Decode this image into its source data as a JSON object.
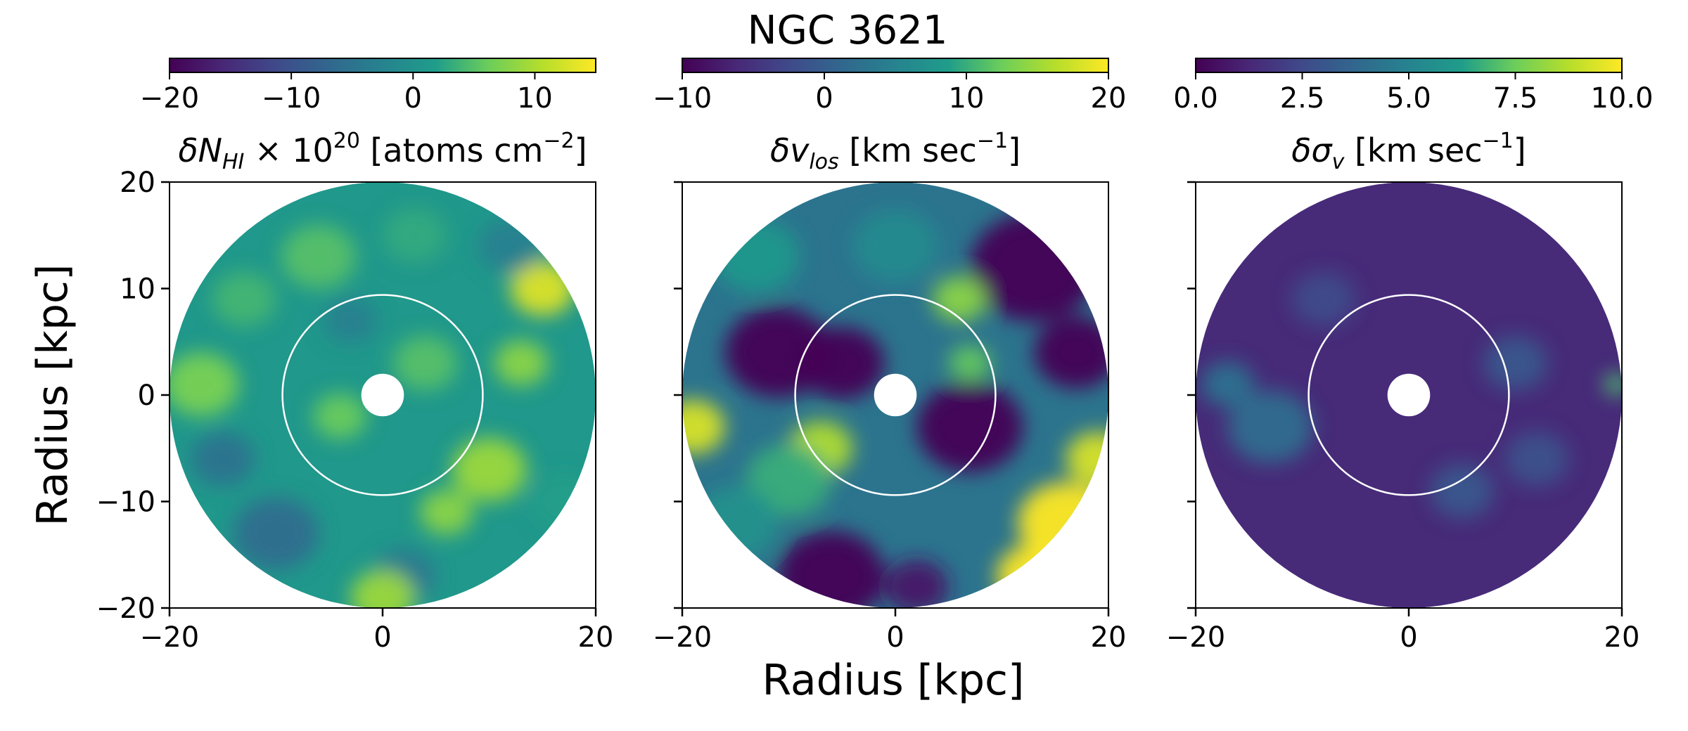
{
  "figure": {
    "title": "NGC 3621",
    "xlabel": "Radius [kpc]",
    "ylabel": "Radius [kpc]"
  },
  "colors": {
    "viridis": [
      "#440154",
      "#482777",
      "#3f4a8a",
      "#31678e",
      "#26838f",
      "#1f9d8a",
      "#6cce5a",
      "#b6de2b",
      "#fee825"
    ],
    "ring": "#ffffff",
    "axis": "#000000"
  },
  "chart_data": [
    {
      "type": "heatmap",
      "panel": "delta column density",
      "title_parts": {
        "pre": "δN",
        "sub1": "HI",
        "mid": " × 10",
        "sup1": "20",
        "post": " [atoms cm",
        "sup2": "−2",
        "end": "]"
      },
      "colorbar": {
        "range": [
          -20,
          15
        ],
        "ticks": [
          -20,
          -10,
          0,
          10
        ],
        "tick_labels": [
          "−20",
          "−10",
          "0",
          "10"
        ]
      },
      "xlim": [
        -20,
        20
      ],
      "ylim": [
        -20,
        20
      ],
      "x_ticks": [
        -20,
        0,
        20
      ],
      "x_tick_labels": [
        "−20",
        "0",
        "20"
      ],
      "y_ticks": [
        -20,
        -10,
        0,
        10,
        20
      ],
      "y_tick_labels": [
        "−20",
        "−10",
        "0",
        "10",
        "20"
      ],
      "disk_radius_kpc": 20,
      "hole_radius_kpc": 2,
      "ring_radius_kpc": 9.4,
      "blobs": [
        {
          "x": 15,
          "y": 10,
          "r": 3,
          "v": 13
        },
        {
          "x": 13,
          "y": 3,
          "r": 2.5,
          "v": 8
        },
        {
          "x": 10,
          "y": -7,
          "r": 3.5,
          "v": 9
        },
        {
          "x": 6,
          "y": -11,
          "r": 2.5,
          "v": 8
        },
        {
          "x": -17,
          "y": 1,
          "r": 3.5,
          "v": 7
        },
        {
          "x": -4,
          "y": -2,
          "r": 2.5,
          "v": 6
        },
        {
          "x": 4,
          "y": 3,
          "r": 3,
          "v": 5
        },
        {
          "x": -13,
          "y": 9,
          "r": 3,
          "v": 4
        },
        {
          "x": -6,
          "y": 13,
          "r": 3.5,
          "v": 5
        },
        {
          "x": 3,
          "y": 15,
          "r": 3,
          "v": 3
        },
        {
          "x": -10,
          "y": -13,
          "r": 4,
          "v": -6
        },
        {
          "x": -15,
          "y": -6,
          "r": 3,
          "v": -5
        },
        {
          "x": 2,
          "y": -17,
          "r": 3,
          "v": -4
        },
        {
          "x": -3,
          "y": 7,
          "r": 2.5,
          "v": -3
        },
        {
          "x": 12,
          "y": 14,
          "r": 3,
          "v": -3
        },
        {
          "x": 0,
          "y": -19,
          "r": 3,
          "v": 9
        },
        {
          "x": 17,
          "y": -10,
          "r": 3,
          "v": 2
        }
      ],
      "background": 1
    },
    {
      "type": "heatmap",
      "panel": "delta line-of-sight velocity",
      "title_parts": {
        "pre": "δv",
        "sub1": "los",
        "mid": " [km sec",
        "sup1": "−1",
        "post": "]"
      },
      "colorbar": {
        "range": [
          -10,
          20
        ],
        "ticks": [
          -10,
          0,
          10,
          20
        ],
        "tick_labels": [
          "−10",
          "0",
          "10",
          "20"
        ]
      },
      "xlim": [
        -20,
        20
      ],
      "ylim": [
        -20,
        20
      ],
      "x_ticks": [
        -20,
        0,
        20
      ],
      "x_tick_labels": [
        "−20",
        "0",
        "20"
      ],
      "y_ticks": [
        -20,
        -10,
        0,
        10,
        20
      ],
      "disk_radius_kpc": 20,
      "hole_radius_kpc": 2,
      "ring_radius_kpc": 9.4,
      "blobs": [
        {
          "x": -11,
          "y": 4,
          "r": 5,
          "v": -10
        },
        {
          "x": -5,
          "y": 3,
          "r": 4,
          "v": -10
        },
        {
          "x": 13,
          "y": 12,
          "r": 6,
          "v": -10
        },
        {
          "x": 17,
          "y": 4,
          "r": 4,
          "v": -10
        },
        {
          "x": 7,
          "y": -3,
          "r": 5,
          "v": -10
        },
        {
          "x": -6,
          "y": -17,
          "r": 5,
          "v": -10
        },
        {
          "x": 2,
          "y": -18,
          "r": 3,
          "v": -8
        },
        {
          "x": 16,
          "y": -12,
          "r": 4.5,
          "v": 20
        },
        {
          "x": 13,
          "y": -17,
          "r": 3.5,
          "v": 20
        },
        {
          "x": 19,
          "y": -6,
          "r": 3,
          "v": 18
        },
        {
          "x": -19,
          "y": -3,
          "r": 3,
          "v": 18
        },
        {
          "x": -7,
          "y": -5,
          "r": 3,
          "v": 16
        },
        {
          "x": -10,
          "y": -8,
          "r": 4,
          "v": 10
        },
        {
          "x": 6,
          "y": 9,
          "r": 2.5,
          "v": 14
        },
        {
          "x": 7,
          "y": 3,
          "r": 2,
          "v": 12
        },
        {
          "x": -13,
          "y": 13,
          "r": 4,
          "v": 8
        },
        {
          "x": -15,
          "y": -12,
          "r": 4,
          "v": 7
        },
        {
          "x": 0,
          "y": 14,
          "r": 4,
          "v": 6
        }
      ],
      "background": 3
    },
    {
      "type": "heatmap",
      "panel": "delta velocity dispersion",
      "title_parts": {
        "pre": "δσ",
        "sub1": "v",
        "mid": " [km sec",
        "sup1": "−1",
        "post": "]"
      },
      "colorbar": {
        "range": [
          0,
          10
        ],
        "ticks": [
          0,
          2.5,
          5,
          7.5,
          10
        ],
        "tick_labels": [
          "0.0",
          "2.5",
          "5.0",
          "7.5",
          "10.0"
        ]
      },
      "xlim": [
        -20,
        20
      ],
      "ylim": [
        -20,
        20
      ],
      "x_ticks": [
        -20,
        0,
        20
      ],
      "x_tick_labels": [
        "−20",
        "0",
        "20"
      ],
      "y_ticks": [
        -20,
        -10,
        0,
        10,
        20
      ],
      "disk_radius_kpc": 20,
      "hole_radius_kpc": 2,
      "ring_radius_kpc": 9.4,
      "blobs": [
        {
          "x": -13,
          "y": -3,
          "r": 4,
          "v": 4
        },
        {
          "x": -17,
          "y": 1,
          "r": 2.5,
          "v": 4.2
        },
        {
          "x": 19.5,
          "y": 1,
          "r": 1.2,
          "v": 7
        },
        {
          "x": 10,
          "y": 3,
          "r": 3,
          "v": 3
        },
        {
          "x": 5,
          "y": -9,
          "r": 3,
          "v": 3
        },
        {
          "x": -8,
          "y": 9,
          "r": 3,
          "v": 2.6
        },
        {
          "x": 12,
          "y": -6,
          "r": 3,
          "v": 2.8
        }
      ],
      "background": 1.4
    }
  ]
}
